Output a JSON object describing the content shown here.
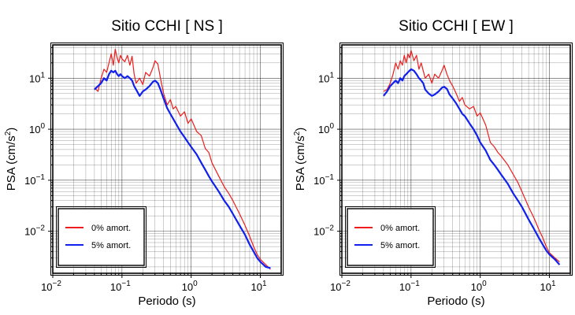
{
  "chart_data": [
    {
      "type": "line",
      "title": "Sitio CCHI [ NS ]",
      "xlabel": "Periodo (s)",
      "ylabel_main": "PSA (cm/s",
      "ylabel_sup": "2",
      "ylabel_end": ")",
      "xscale": "log",
      "yscale": "log",
      "xlim": [
        0.01,
        20
      ],
      "ylim": [
        0.0015,
        45
      ],
      "grid": true,
      "legend_position": "bottom-left",
      "x_tick_labels": [
        {
          "base": "10",
          "exp": "−2"
        },
        {
          "base": "10",
          "exp": "−1"
        },
        {
          "base": "10",
          "exp": "0"
        },
        {
          "base": "10",
          "exp": "1"
        }
      ],
      "y_tick_labels": [
        {
          "base": "10",
          "exp": "−2"
        },
        {
          "base": "10",
          "exp": "−1"
        },
        {
          "base": "10",
          "exp": "0"
        },
        {
          "base": "10",
          "exp": "1"
        }
      ],
      "series": [
        {
          "name": "0% amort.",
          "color": "#ee1c1c",
          "x": [
            0.04,
            0.045,
            0.05,
            0.055,
            0.06,
            0.065,
            0.07,
            0.075,
            0.08,
            0.085,
            0.09,
            0.095,
            0.1,
            0.11,
            0.12,
            0.13,
            0.14,
            0.15,
            0.16,
            0.18,
            0.2,
            0.22,
            0.25,
            0.28,
            0.3,
            0.33,
            0.36,
            0.4,
            0.45,
            0.5,
            0.55,
            0.6,
            0.7,
            0.8,
            0.9,
            1.0,
            1.2,
            1.4,
            1.6,
            1.8,
            2.0,
            2.5,
            3.0,
            3.5,
            4.0,
            5.0,
            6.0,
            7.0,
            8.0,
            9.0,
            10.0,
            12.0,
            14.0
          ],
          "y": [
            6.5,
            5.5,
            10,
            15,
            13,
            20,
            30,
            18,
            37,
            25,
            20,
            28,
            24,
            21,
            28,
            18,
            27,
            12,
            8,
            10,
            7.5,
            13,
            11,
            16,
            22,
            19,
            10,
            5,
            3,
            3.8,
            2.5,
            2.8,
            1.8,
            2.2,
            1.3,
            1.6,
            0.9,
            0.75,
            0.42,
            0.35,
            0.22,
            0.12,
            0.075,
            0.055,
            0.04,
            0.022,
            0.013,
            0.008,
            0.005,
            0.0035,
            0.0028,
            0.0022,
            0.0018
          ]
        },
        {
          "name": "5% amort.",
          "color": "#1020ee",
          "x": [
            0.04,
            0.045,
            0.05,
            0.055,
            0.06,
            0.065,
            0.07,
            0.075,
            0.08,
            0.085,
            0.09,
            0.095,
            0.1,
            0.11,
            0.12,
            0.13,
            0.14,
            0.15,
            0.16,
            0.18,
            0.2,
            0.22,
            0.25,
            0.28,
            0.3,
            0.33,
            0.36,
            0.4,
            0.45,
            0.5,
            0.55,
            0.6,
            0.7,
            0.8,
            0.9,
            1.0,
            1.2,
            1.4,
            1.6,
            1.8,
            2.0,
            2.5,
            3.0,
            3.5,
            4.0,
            5.0,
            6.0,
            7.0,
            8.0,
            9.0,
            10.0,
            12.0,
            14.0
          ],
          "y": [
            6,
            7,
            8,
            10,
            9,
            12,
            14,
            13,
            14,
            12,
            11,
            12,
            11,
            10,
            11,
            10,
            9,
            7,
            6,
            4.5,
            5.5,
            6,
            7,
            8.5,
            9,
            8,
            6,
            4,
            2.6,
            2.0,
            1.6,
            1.3,
            0.9,
            0.7,
            0.55,
            0.45,
            0.32,
            0.22,
            0.16,
            0.12,
            0.095,
            0.06,
            0.04,
            0.03,
            0.022,
            0.013,
            0.0085,
            0.0055,
            0.004,
            0.003,
            0.0025,
            0.002,
            0.0019
          ]
        }
      ]
    },
    {
      "type": "line",
      "title": "Sitio CCHI [ EW ]",
      "xlabel": "Periodo (s)",
      "ylabel_main": "PSA (cm/s",
      "ylabel_sup": "2",
      "ylabel_end": ")",
      "xscale": "log",
      "yscale": "log",
      "xlim": [
        0.01,
        20
      ],
      "ylim": [
        0.0015,
        45
      ],
      "grid": true,
      "legend_position": "bottom-left",
      "x_tick_labels": [
        {
          "base": "10",
          "exp": "−2"
        },
        {
          "base": "10",
          "exp": "−1"
        },
        {
          "base": "10",
          "exp": "0"
        },
        {
          "base": "10",
          "exp": "1"
        }
      ],
      "y_tick_labels": [
        {
          "base": "10",
          "exp": "−2"
        },
        {
          "base": "10",
          "exp": "−1"
        },
        {
          "base": "10",
          "exp": "0"
        },
        {
          "base": "10",
          "exp": "1"
        }
      ],
      "series": [
        {
          "name": "0% amort.",
          "color": "#ee1c1c",
          "x": [
            0.04,
            0.045,
            0.05,
            0.055,
            0.06,
            0.065,
            0.07,
            0.075,
            0.08,
            0.085,
            0.09,
            0.095,
            0.1,
            0.11,
            0.12,
            0.13,
            0.14,
            0.15,
            0.16,
            0.18,
            0.2,
            0.22,
            0.25,
            0.28,
            0.3,
            0.33,
            0.36,
            0.4,
            0.45,
            0.5,
            0.55,
            0.6,
            0.7,
            0.8,
            0.9,
            1.0,
            1.2,
            1.4,
            1.6,
            1.8,
            2.0,
            2.5,
            3.0,
            3.5,
            4.0,
            5.0,
            6.0,
            7.0,
            8.0,
            9.0,
            10.0,
            12.0,
            14.0
          ],
          "y": [
            5.5,
            6,
            8,
            12,
            20,
            15,
            22,
            18,
            28,
            20,
            30,
            25,
            35,
            22,
            28,
            15,
            20,
            14,
            10,
            12,
            8,
            12,
            10,
            14,
            18,
            12,
            9,
            7,
            5,
            3.5,
            4.2,
            3,
            2.5,
            2.8,
            1.8,
            2.1,
            1.2,
            0.55,
            0.45,
            0.35,
            0.3,
            0.2,
            0.13,
            0.09,
            0.06,
            0.03,
            0.018,
            0.011,
            0.0075,
            0.005,
            0.0038,
            0.003,
            0.0025
          ]
        },
        {
          "name": "5% amort.",
          "color": "#1020ee",
          "x": [
            0.04,
            0.045,
            0.05,
            0.055,
            0.06,
            0.065,
            0.07,
            0.075,
            0.08,
            0.085,
            0.09,
            0.095,
            0.1,
            0.11,
            0.12,
            0.13,
            0.14,
            0.15,
            0.16,
            0.18,
            0.2,
            0.22,
            0.25,
            0.28,
            0.3,
            0.33,
            0.36,
            0.4,
            0.45,
            0.5,
            0.55,
            0.6,
            0.7,
            0.8,
            0.9,
            1.0,
            1.2,
            1.4,
            1.6,
            1.8,
            2.0,
            2.5,
            3.0,
            3.5,
            4.0,
            5.0,
            6.0,
            7.0,
            8.0,
            9.0,
            10.0,
            12.0,
            14.0
          ],
          "y": [
            4.5,
            5.5,
            7,
            8,
            9,
            8,
            10,
            9,
            11,
            12,
            13,
            14,
            15,
            14,
            12,
            10,
            9,
            8,
            6,
            5,
            4.5,
            4.8,
            5.5,
            6.5,
            6.8,
            6.2,
            4.8,
            4,
            3.2,
            2.5,
            2,
            1.8,
            1.3,
            1.0,
            0.75,
            0.55,
            0.38,
            0.25,
            0.2,
            0.16,
            0.13,
            0.085,
            0.055,
            0.04,
            0.03,
            0.017,
            0.011,
            0.0075,
            0.0055,
            0.0042,
            0.0035,
            0.0028,
            0.0022
          ]
        }
      ]
    }
  ]
}
